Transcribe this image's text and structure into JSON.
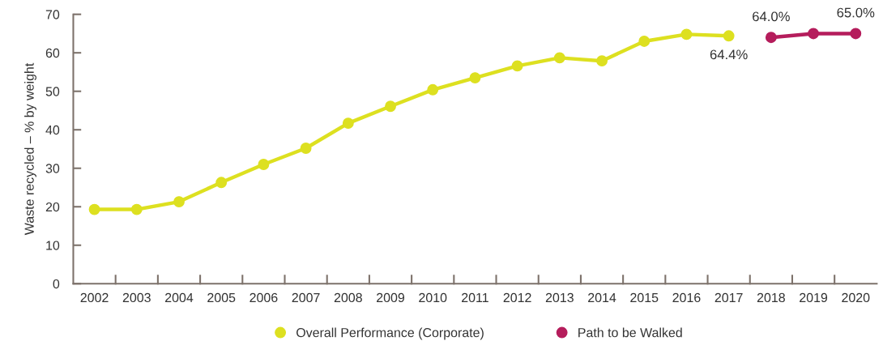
{
  "chart_data": {
    "type": "line",
    "ylabel": "Waste recycled – % by weight",
    "categories": [
      "2002",
      "2003",
      "2004",
      "2005",
      "2006",
      "2007",
      "2008",
      "2009",
      "2010",
      "2011",
      "2012",
      "2013",
      "2014",
      "2015",
      "2016",
      "2017",
      "2018",
      "2019",
      "2020"
    ],
    "series": [
      {
        "name": "Overall Performance (Corporate)",
        "color": "#dde020",
        "values": [
          19.3,
          19.3,
          21.3,
          26.3,
          31.0,
          35.2,
          41.7,
          46.1,
          50.4,
          53.5,
          56.6,
          58.7,
          57.9,
          63.0,
          64.8,
          64.4,
          null,
          null,
          null
        ],
        "value_labels": [
          null,
          null,
          null,
          null,
          null,
          null,
          null,
          null,
          null,
          null,
          null,
          null,
          null,
          null,
          null,
          "64.4%",
          null,
          null,
          null
        ]
      },
      {
        "name": "Path to be Walked",
        "color": "#b51d5c",
        "values": [
          null,
          null,
          null,
          null,
          null,
          null,
          null,
          null,
          null,
          null,
          null,
          null,
          null,
          null,
          null,
          null,
          64.0,
          65.0,
          65.0
        ],
        "value_labels": [
          null,
          null,
          null,
          null,
          null,
          null,
          null,
          null,
          null,
          null,
          null,
          null,
          null,
          null,
          null,
          null,
          "64.0%",
          null,
          "65.0%"
        ]
      }
    ],
    "ylim": [
      0,
      70
    ],
    "yticks": [
      0,
      10,
      20,
      30,
      40,
      50,
      60,
      70
    ],
    "grid": false,
    "legend": "bottom",
    "marker": "circle",
    "line_style": "solid"
  }
}
